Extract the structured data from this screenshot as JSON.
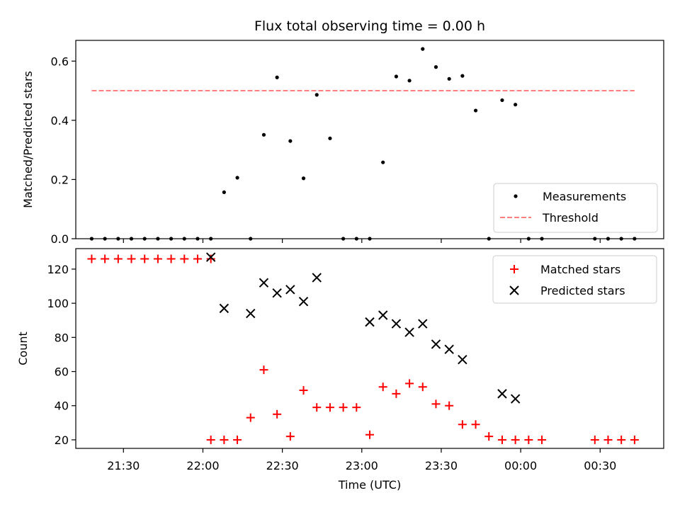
{
  "chart_data": [
    {
      "type": "scatter",
      "title": "Flux total observing time = 0.00 h",
      "ylabel": "Matched/Predicted stars",
      "ylim": [
        0,
        0.67
      ],
      "yticks": [
        0.0,
        0.2,
        0.4,
        0.6
      ],
      "ytick_labels": [
        "0.0",
        "0.2",
        "0.4",
        "0.6"
      ],
      "xlim": [
        "21:12",
        "23:54+60"
      ],
      "legend": {
        "placement": "lower-right",
        "entries": [
          "Measurements",
          "Threshold"
        ]
      },
      "series": [
        {
          "name": "Measurements",
          "marker": "dot",
          "color": "#000000",
          "x": [
            "21:18",
            "21:23",
            "21:28",
            "21:33",
            "21:38",
            "21:43",
            "21:48",
            "21:53",
            "21:58",
            "22:03",
            "22:08",
            "22:13",
            "22:18",
            "22:23",
            "22:28",
            "22:33",
            "22:38",
            "22:43",
            "22:48",
            "22:53",
            "22:58",
            "23:03",
            "23:08",
            "23:13",
            "23:18",
            "23:23",
            "23:28",
            "23:33",
            "23:38",
            "23:43",
            "23:48",
            "23:53",
            "23:58",
            "00:03",
            "00:08",
            "00:28",
            "00:33",
            "00:38",
            "00:43"
          ],
          "y": [
            0,
            0,
            0,
            0,
            0,
            0,
            0,
            0,
            0,
            0,
            0.157,
            0.206,
            0,
            0.351,
            0.545,
            0.33,
            0.204,
            0.486,
            0.339,
            0,
            0,
            0,
            0.258,
            0.548,
            0.534,
            0.641,
            0.58,
            0.54,
            0.55,
            0.433,
            0,
            0.468,
            0.453,
            0,
            0,
            0,
            0,
            0,
            0
          ]
        },
        {
          "name": "Threshold",
          "style": "dashed",
          "color": "#ff7f7f",
          "x": [
            "21:18",
            "00:43"
          ],
          "y": [
            0.5,
            0.5
          ]
        }
      ]
    },
    {
      "type": "scatter",
      "xlabel": "Time (UTC)",
      "ylabel": "Count",
      "ylim": [
        15,
        132
      ],
      "yticks": [
        20,
        40,
        60,
        80,
        100,
        120
      ],
      "ytick_labels": [
        "20",
        "40",
        "60",
        "80",
        "100",
        "120"
      ],
      "xticks": [
        "21:30",
        "22:00",
        "22:30",
        "23:00",
        "23:30",
        "00:00",
        "00:30"
      ],
      "legend": {
        "placement": "upper-right",
        "entries": [
          "Matched stars",
          "Predicted stars"
        ]
      },
      "series": [
        {
          "name": "Matched stars",
          "marker": "plus",
          "color": "#ff0000",
          "x": [
            "21:18",
            "21:23",
            "21:28",
            "21:33",
            "21:38",
            "21:43",
            "21:48",
            "21:53",
            "21:58",
            "22:03",
            "22:03",
            "22:08",
            "22:13",
            "22:18",
            "22:23",
            "22:28",
            "22:33",
            "22:38",
            "22:43",
            "22:48",
            "22:53",
            "22:58",
            "23:03",
            "23:08",
            "23:13",
            "23:18",
            "23:23",
            "23:28",
            "23:33",
            "23:38",
            "23:43",
            "23:48",
            "23:53",
            "23:58",
            "00:03",
            "00:08",
            "00:28",
            "00:33",
            "00:38",
            "00:43"
          ],
          "y": [
            126,
            126,
            126,
            126,
            126,
            126,
            126,
            126,
            126,
            126,
            20,
            20,
            20,
            33,
            61,
            35,
            22,
            49,
            39,
            39,
            39,
            39,
            23,
            51,
            47,
            53,
            51,
            41,
            40,
            29,
            29,
            22,
            20,
            20,
            20,
            20,
            20,
            20,
            20,
            20
          ]
        },
        {
          "name": "Predicted stars",
          "marker": "x",
          "color": "#000000",
          "x": [
            "22:03",
            "22:08",
            "22:18",
            "22:23",
            "22:28",
            "22:33",
            "22:38",
            "22:43",
            "23:03",
            "23:08",
            "23:13",
            "23:18",
            "23:23",
            "23:28",
            "23:33",
            "23:38",
            "23:53",
            "23:58"
          ],
          "y": [
            127,
            97,
            94,
            112,
            106,
            108,
            101,
            115,
            89,
            93,
            88,
            83,
            88,
            76,
            73,
            67,
            47,
            44
          ]
        }
      ]
    }
  ]
}
